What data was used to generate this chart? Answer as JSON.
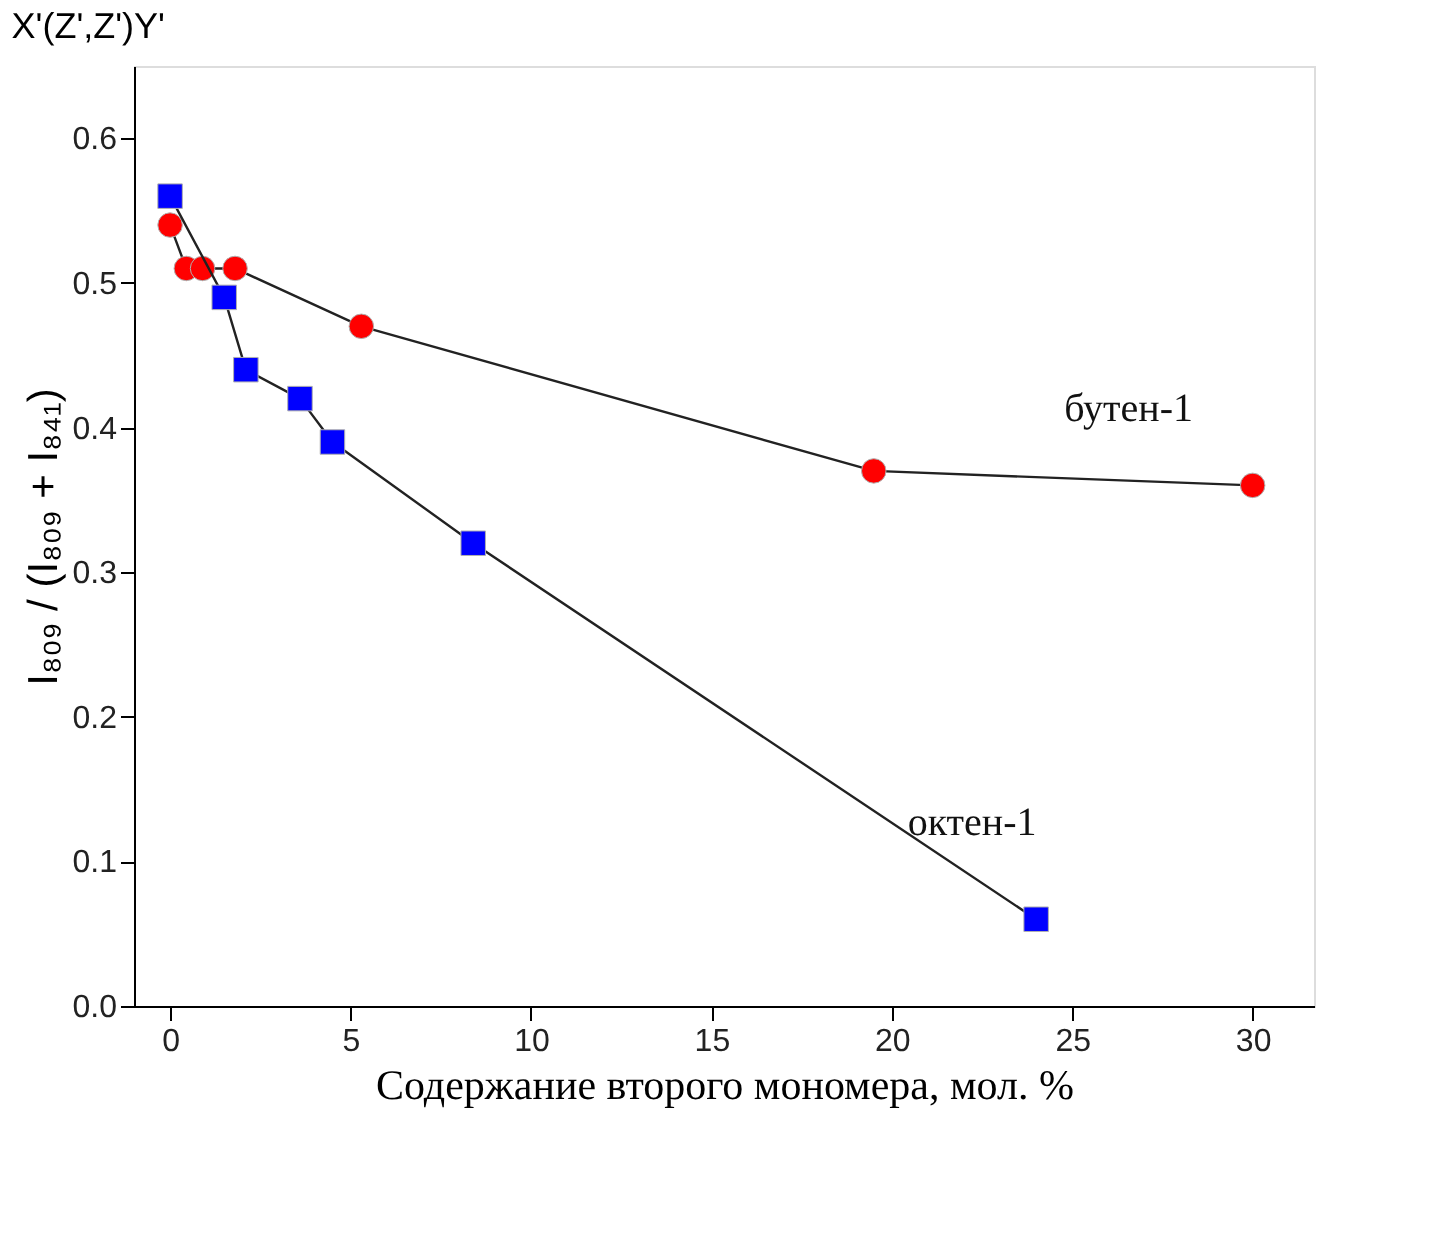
{
  "chart_data": {
    "type": "line",
    "title": "X'(Z',Z')Y'",
    "xlabel": "Содержание второго мономера, мол. %",
    "ylabel": "I₈₀₉ / (I₈₀₉ + I₈₄₁)",
    "xlim": [
      -1,
      31.7
    ],
    "xticks": [
      0,
      5,
      10,
      15,
      20,
      25,
      30
    ],
    "ylim": [
      0,
      0.65
    ],
    "yticks": [
      {
        "value": 0,
        "label": "0.0"
      },
      0.1,
      0.2,
      0.3,
      0.4,
      0.5,
      0.6
    ],
    "grid": false,
    "series": [
      {
        "name": "бутен-1",
        "color": "#ff0000",
        "marker": "circle",
        "x": [
          0,
          0.45,
          0.9,
          1.8,
          5.3,
          19.5,
          30
        ],
        "values": [
          0.54,
          0.51,
          0.51,
          0.51,
          0.47,
          0.37,
          0.36
        ]
      },
      {
        "name": "октен-1",
        "color": "#0000ff",
        "marker": "square",
        "x": [
          0,
          1.5,
          2.1,
          3.6,
          4.5,
          8.4,
          24
        ],
        "values": [
          0.56,
          0.49,
          0.44,
          0.42,
          0.39,
          0.32,
          0.06
        ]
      }
    ]
  }
}
